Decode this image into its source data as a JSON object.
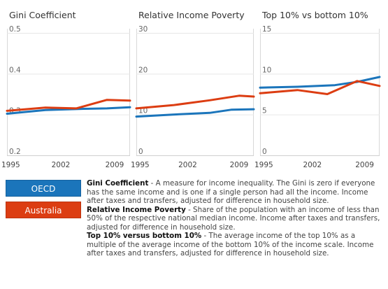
{
  "chart_data": [
    {
      "type": "line",
      "title": "Gini Coefficient",
      "ylim": [
        0.2,
        0.5
      ],
      "yticks": [
        "0.5",
        "0.4",
        "0.3",
        "0.2"
      ],
      "xlim": [
        1995,
        2011
      ],
      "xticks": [
        1995,
        2002,
        2009
      ],
      "xtick_labels": [
        "1995",
        "2002",
        "2009"
      ],
      "grid": true,
      "series": [
        {
          "name": "OECD",
          "color": "#1b75bb",
          "x": [
            1995,
            2000,
            2005,
            2008,
            2011
          ],
          "y": [
            0.302,
            0.311,
            0.314,
            0.315,
            0.318
          ]
        },
        {
          "name": "Australia",
          "color": "#dc3d12",
          "x": [
            1995,
            2000,
            2004,
            2008,
            2011
          ],
          "y": [
            0.309,
            0.317,
            0.315,
            0.336,
            0.334
          ]
        }
      ]
    },
    {
      "type": "line",
      "title": "Relative Income Poverty",
      "ylim": [
        0,
        30
      ],
      "yticks": [
        "30",
        "20",
        "10",
        "0"
      ],
      "xlim": [
        1995,
        2011
      ],
      "xticks": [
        1995,
        2002,
        2009
      ],
      "xtick_labels": [
        "1995",
        "2002",
        "2009"
      ],
      "grid": true,
      "series": [
        {
          "name": "OECD",
          "color": "#1b75bb",
          "x": [
            1995,
            2000,
            2005,
            2008,
            2011
          ],
          "y": [
            9.5,
            10.0,
            10.4,
            11.2,
            11.3
          ]
        },
        {
          "name": "Australia",
          "color": "#dc3d12",
          "x": [
            1995,
            2000,
            2005,
            2009,
            2011
          ],
          "y": [
            11.5,
            12.3,
            13.5,
            14.6,
            14.4
          ]
        }
      ]
    },
    {
      "type": "line",
      "title": "Top 10% vs bottom 10%",
      "ylim": [
        0,
        15
      ],
      "yticks": [
        "15",
        "10",
        "5",
        "0"
      ],
      "xlim": [
        1995,
        2011
      ],
      "xticks": [
        1995,
        2002,
        2009
      ],
      "xtick_labels": [
        "1995",
        "2002",
        "2009"
      ],
      "grid": true,
      "series": [
        {
          "name": "OECD",
          "color": "#1b75bb",
          "x": [
            1995,
            2000,
            2005,
            2008,
            2011
          ],
          "y": [
            8.3,
            8.4,
            8.6,
            9.0,
            9.6
          ]
        },
        {
          "name": "Australia",
          "color": "#dc3d12",
          "x": [
            1995,
            2000,
            2004,
            2008,
            2011
          ],
          "y": [
            7.6,
            8.0,
            7.5,
            9.1,
            8.5
          ]
        }
      ]
    }
  ],
  "legend": {
    "oecd": "OECD",
    "australia": "Australia"
  },
  "definitions": [
    {
      "term": "Gini Coefficient",
      "text": " - A measure for income inequality. The Gini is zero if everyone has the same income and is one if a single person had all the income. Income after taxes and transfers, adjusted for difference in household size."
    },
    {
      "term": "Relative Income Poverty",
      "text": " - Share of the population with an income of less than 50% of the respective national median income. Income after taxes and transfers, adjusted for difference in household size."
    },
    {
      "term": "Top 10% versus bottom 10%",
      "text": " - The average income of the top 10% as a multiple of the average income of the bottom 10% of the income scale. Income after taxes and transfers, adjusted for difference in household size."
    }
  ]
}
